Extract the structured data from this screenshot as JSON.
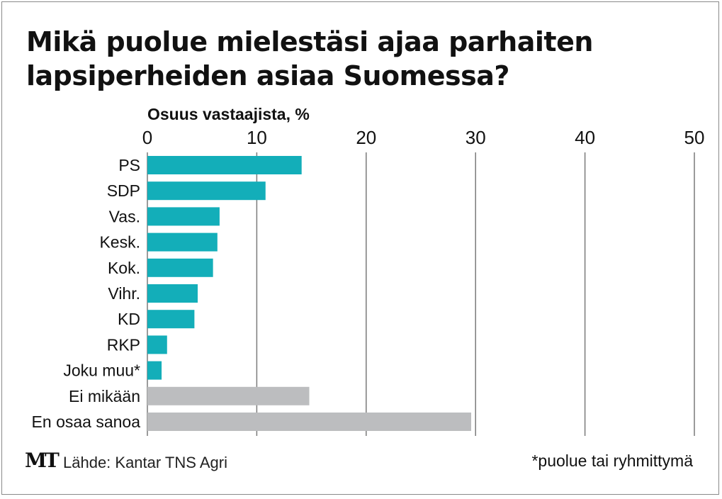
{
  "title": "Mikä puolue mielestäsi ajaa parhaiten lapsiperheiden asiaa Suomessa?",
  "footer": {
    "brand": "MT",
    "source": "Lähde: Kantar TNS Agri",
    "note": "*puolue tai ryhmittymä"
  },
  "colors": {
    "party_bar": "#13aeb9",
    "other_bar": "#bcbdbf",
    "gridline": "#7a7a7a"
  },
  "chart_data": {
    "type": "bar",
    "orientation": "horizontal",
    "xlabel": "Osuus vastaajista, %",
    "xlim": [
      0,
      50
    ],
    "xticks": [
      0,
      10,
      20,
      30,
      40,
      50
    ],
    "grid": true,
    "axis_position": "top",
    "categories": [
      "PS",
      "SDP",
      "Vas.",
      "Kesk.",
      "Kok.",
      "Vihr.",
      "KD",
      "RKP",
      "Joku muu*",
      "Ei mikään",
      "En osaa sanoa"
    ],
    "values": [
      14.1,
      10.8,
      6.6,
      6.4,
      6.0,
      4.6,
      4.3,
      1.8,
      1.3,
      14.8,
      29.6
    ],
    "groups": [
      "party",
      "party",
      "party",
      "party",
      "party",
      "party",
      "party",
      "party",
      "party",
      "other",
      "other"
    ]
  }
}
